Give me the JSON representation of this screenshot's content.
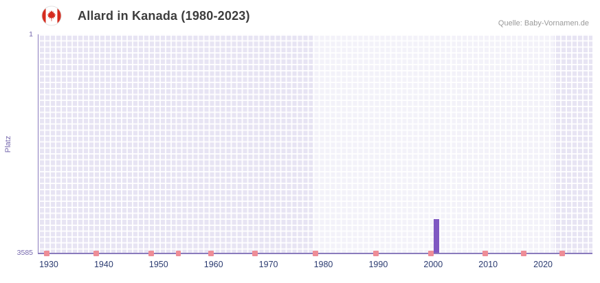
{
  "header": {
    "title": "Allard in Kanada (1980-2023)",
    "source": "Quelle: Baby-Vornamen.de",
    "flag_icon": "canada-flag"
  },
  "chart_data": {
    "type": "bar",
    "title": "Allard in Kanada (1980-2023)",
    "xlabel": "",
    "ylabel": "Platz",
    "y_axis": {
      "tick_labels": [
        "1",
        "3585"
      ],
      "top_label": "1",
      "bottom_label": "3585",
      "min": 1,
      "max": 3585,
      "inverted": true
    },
    "x_axis": {
      "tick_labels": [
        "1930",
        "1940",
        "1950",
        "1960",
        "1970",
        "1980",
        "1990",
        "2000",
        "2010",
        "2020"
      ],
      "domain": [
        1928,
        2029
      ]
    },
    "grid": "on",
    "legend": "none",
    "highlight_band": {
      "from_year": 1978,
      "to_year": 2022
    },
    "bars": [
      {
        "year": 2000,
        "rank": 3030
      }
    ],
    "bottom_markers": {
      "years": [
        1929,
        1938,
        1948,
        1953,
        1959,
        1967,
        1978,
        1989,
        1999,
        2009,
        2016,
        2023
      ]
    }
  },
  "colors": {
    "bar": "#7e57c2",
    "marker": "#ee8d97",
    "plot_bg": "#e7e4f3",
    "grid_line": "rgba(255,255,255,0.9)",
    "highlight_overlay": "rgba(255,255,255,0.5)",
    "axis": "#8a7bbd",
    "x_tick_text": "#2a3a70",
    "y_tick_text": "#7668ad",
    "title_text": "#3d3d3d",
    "source_text": "#999999",
    "flag_red": "#d52b1e"
  }
}
